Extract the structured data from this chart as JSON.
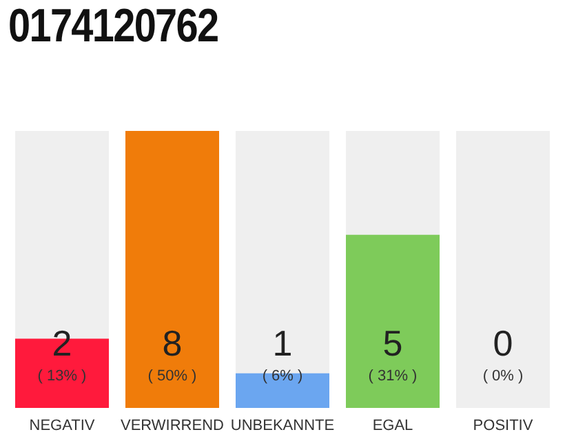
{
  "chart_data": {
    "type": "bar",
    "title": "0174120762",
    "categories": [
      "NEGATIV",
      "VERWIRREND",
      "UNBEKANNTE",
      "EGAL",
      "POSITIV"
    ],
    "values": [
      2,
      8,
      1,
      5,
      0
    ],
    "colors": [
      "#ff1a3c",
      "#f07c0a",
      "#6ba6f0",
      "#7ecb5a",
      "#d8d8d8"
    ],
    "ylim": [
      0,
      8
    ],
    "tick_labels": "x",
    "data_labels": true,
    "annotations": [
      "( 13% )",
      "( 50% )",
      "( 6% )",
      "( 31% )",
      "( 0% )"
    ]
  }
}
